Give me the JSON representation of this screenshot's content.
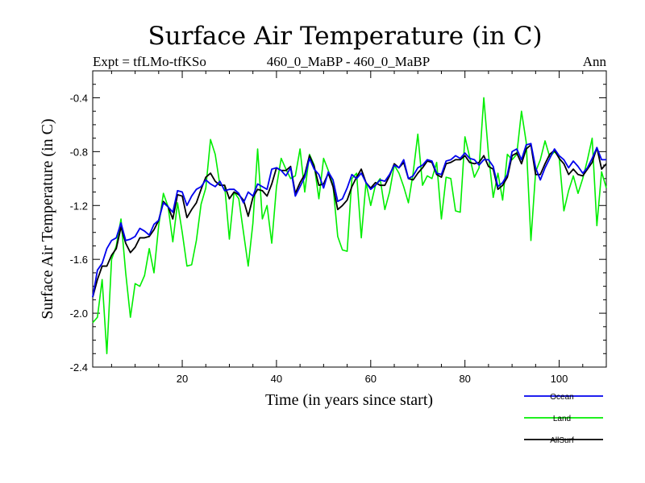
{
  "chart_data": {
    "type": "line",
    "title": "Surface Air Temperature (in C)",
    "subtitle_left": "Expt = tfLMo-tfKSo",
    "subtitle_center": "460_0_MaBP - 460_0_MaBP",
    "subtitle_right": "Ann",
    "xlabel": "Time (in years since start)",
    "ylabel": "Surface Air Temperature (in C)",
    "xlim": [
      1,
      110
    ],
    "ylim": [
      -2.4,
      -0.2
    ],
    "xticks": [
      20,
      40,
      60,
      80,
      100
    ],
    "xtick_labels": [
      "20",
      "40",
      "60",
      "80",
      "100"
    ],
    "yticks": [
      -2.4,
      -2.0,
      -1.6,
      -1.2,
      -0.8,
      -0.4
    ],
    "ytick_labels": [
      "-2.4",
      "-2.0",
      "-1.6",
      "-1.2",
      "-0.8",
      "-0.4"
    ],
    "legend_position": "bottom-right",
    "x": [
      1,
      2,
      3,
      4,
      5,
      6,
      7,
      8,
      9,
      10,
      11,
      12,
      13,
      14,
      15,
      16,
      17,
      18,
      19,
      20,
      21,
      22,
      23,
      24,
      25,
      26,
      27,
      28,
      29,
      30,
      31,
      32,
      33,
      34,
      35,
      36,
      37,
      38,
      39,
      40,
      41,
      42,
      43,
      44,
      45,
      46,
      47,
      48,
      49,
      50,
      51,
      52,
      53,
      54,
      55,
      56,
      57,
      58,
      59,
      60,
      61,
      62,
      63,
      64,
      65,
      66,
      67,
      68,
      69,
      70,
      71,
      72,
      73,
      74,
      75,
      76,
      77,
      78,
      79,
      80,
      81,
      82,
      83,
      84,
      85,
      86,
      87,
      88,
      89,
      90,
      91,
      92,
      93,
      94,
      95,
      96,
      97,
      98,
      99,
      100,
      101,
      102,
      103,
      104,
      105,
      106,
      107,
      108,
      109,
      110
    ],
    "series": [
      {
        "name": "Ocean",
        "color": "#0000ee",
        "values": [
          -1.88,
          -1.68,
          -1.63,
          -1.52,
          -1.46,
          -1.44,
          -1.33,
          -1.46,
          -1.45,
          -1.43,
          -1.37,
          -1.39,
          -1.42,
          -1.34,
          -1.31,
          -1.18,
          -1.21,
          -1.25,
          -1.09,
          -1.1,
          -1.2,
          -1.13,
          -1.08,
          -1.06,
          -1.01,
          -1.04,
          -1.06,
          -1.02,
          -1.09,
          -1.08,
          -1.08,
          -1.11,
          -1.18,
          -1.1,
          -1.13,
          -1.04,
          -1.06,
          -1.08,
          -0.93,
          -0.92,
          -0.94,
          -0.98,
          -0.92,
          -1.13,
          -1.06,
          -0.99,
          -0.85,
          -0.93,
          -0.97,
          -1.07,
          -0.95,
          -1.01,
          -1.17,
          -1.15,
          -1.07,
          -0.97,
          -1.0,
          -0.96,
          -1.03,
          -1.08,
          -1.05,
          -1.01,
          -1.02,
          -0.97,
          -0.9,
          -0.92,
          -0.86,
          -1.0,
          -0.98,
          -0.92,
          -0.9,
          -0.86,
          -0.87,
          -0.96,
          -0.97,
          -0.87,
          -0.86,
          -0.83,
          -0.85,
          -0.81,
          -0.85,
          -0.86,
          -0.9,
          -0.86,
          -0.86,
          -0.91,
          -1.06,
          -1.03,
          -0.97,
          -0.8,
          -0.78,
          -0.86,
          -0.75,
          -0.74,
          -0.92,
          -1.01,
          -0.92,
          -0.85,
          -0.78,
          -0.83,
          -0.86,
          -0.92,
          -0.87,
          -0.91,
          -0.96,
          -0.92,
          -0.85,
          -0.77,
          -0.86,
          -0.86
        ]
      },
      {
        "name": "Land",
        "color": "#00ee00",
        "values": [
          -2.07,
          -2.03,
          -1.75,
          -2.3,
          -1.6,
          -1.5,
          -1.3,
          -1.7,
          -2.03,
          -1.78,
          -1.8,
          -1.72,
          -1.52,
          -1.7,
          -1.35,
          -1.11,
          -1.21,
          -1.47,
          -1.18,
          -1.4,
          -1.65,
          -1.64,
          -1.46,
          -1.19,
          -1.07,
          -0.71,
          -0.82,
          -1.05,
          -1.05,
          -1.45,
          -1.1,
          -1.15,
          -1.4,
          -1.65,
          -1.33,
          -0.78,
          -1.3,
          -1.2,
          -1.48,
          -1.06,
          -0.85,
          -0.93,
          -1.0,
          -0.98,
          -0.78,
          -1.1,
          -0.82,
          -0.9,
          -1.15,
          -0.85,
          -0.94,
          -1.05,
          -1.43,
          -1.53,
          -1.54,
          -1.0,
          -0.96,
          -1.44,
          -1.03,
          -1.2,
          -1.05,
          -1.0,
          -1.23,
          -1.1,
          -0.9,
          -0.96,
          -1.06,
          -1.18,
          -0.96,
          -0.67,
          -1.05,
          -0.98,
          -1.0,
          -0.88,
          -1.3,
          -0.99,
          -1.0,
          -1.24,
          -1.25,
          -0.69,
          -0.84,
          -0.99,
          -0.92,
          -0.4,
          -0.82,
          -1.14,
          -0.96,
          -1.16,
          -0.82,
          -0.86,
          -0.82,
          -0.5,
          -0.73,
          -1.46,
          -0.95,
          -0.86,
          -0.72,
          -0.84,
          -0.8,
          -0.84,
          -1.24,
          -1.09,
          -0.98,
          -1.11,
          -1.0,
          -0.86,
          -0.7,
          -1.35,
          -0.95,
          -1.07
        ]
      },
      {
        "name": "AllSurf",
        "color": "#000000",
        "values": [
          -1.88,
          -1.75,
          -1.65,
          -1.65,
          -1.57,
          -1.52,
          -1.36,
          -1.48,
          -1.55,
          -1.51,
          -1.44,
          -1.44,
          -1.43,
          -1.38,
          -1.31,
          -1.17,
          -1.21,
          -1.3,
          -1.12,
          -1.13,
          -1.29,
          -1.23,
          -1.18,
          -1.08,
          -0.99,
          -0.96,
          -1.02,
          -1.05,
          -1.05,
          -1.15,
          -1.1,
          -1.12,
          -1.16,
          -1.28,
          -1.14,
          -1.08,
          -1.09,
          -1.13,
          -1.04,
          -0.92,
          -0.94,
          -0.94,
          -0.91,
          -1.11,
          -1.03,
          -0.97,
          -0.83,
          -0.91,
          -1.05,
          -1.04,
          -0.96,
          -1.06,
          -1.23,
          -1.2,
          -1.16,
          -1.06,
          -0.99,
          -0.93,
          -1.03,
          -1.07,
          -1.03,
          -1.05,
          -1.05,
          -0.98,
          -0.89,
          -0.92,
          -0.88,
          -1.0,
          -1.01,
          -0.96,
          -0.92,
          -0.87,
          -0.88,
          -0.97,
          -0.99,
          -0.89,
          -0.88,
          -0.86,
          -0.86,
          -0.83,
          -0.88,
          -0.89,
          -0.88,
          -0.83,
          -0.91,
          -0.93,
          -1.08,
          -1.05,
          -0.99,
          -0.83,
          -0.81,
          -0.89,
          -0.78,
          -0.75,
          -0.97,
          -0.97,
          -0.89,
          -0.82,
          -0.79,
          -0.85,
          -0.89,
          -0.97,
          -0.93,
          -0.97,
          -0.98,
          -0.93,
          -0.88,
          -0.77,
          -0.93,
          -0.89
        ]
      }
    ]
  }
}
